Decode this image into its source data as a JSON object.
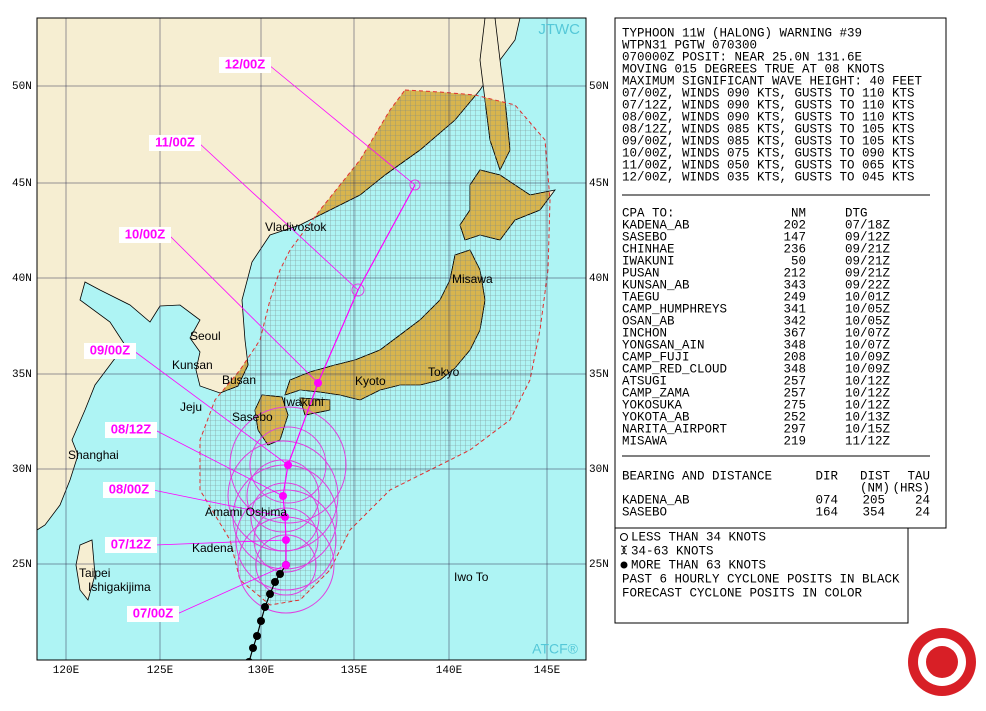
{
  "map": {
    "agency": "JTWC",
    "system": "ATCF®",
    "latitude_labels": [
      "50N",
      "45N",
      "40N",
      "35N",
      "30N",
      "25N"
    ],
    "longitude_labels": [
      "120E",
      "125E",
      "130E",
      "135E",
      "140E",
      "145E"
    ],
    "places": [
      "Vladivostok",
      "Misawa",
      "Seoul",
      "Kunsan",
      "Busan",
      "Jeju",
      "Sasebo",
      "Iwakuni",
      "Kyoto",
      "Tokyo",
      "Shanghai",
      "Amami Oshima",
      "Kadena",
      "Taipei",
      "Ishigakijima",
      "Iwo To"
    ],
    "forecast_times": [
      "12/00Z",
      "11/00Z",
      "10/00Z",
      "09/00Z",
      "08/12Z",
      "08/00Z",
      "07/12Z",
      "07/00Z"
    ]
  },
  "warning": {
    "header": [
      "TYPHOON 11W (HALONG) WARNING #39",
      "WTPN31 PGTW 070300",
      "070000Z POSIT: NEAR 25.0N 131.6E",
      "MOVING 015 DEGREES TRUE AT 08 KNOTS",
      "MAXIMUM SIGNIFICANT WAVE HEIGHT: 40 FEET",
      "07/00Z, WINDS 090 KTS, GUSTS TO 110 KTS",
      "07/12Z, WINDS 090 KTS, GUSTS TO 110 KTS",
      "08/00Z, WINDS 090 KTS, GUSTS TO 110 KTS",
      "08/12Z, WINDS 085 KTS, GUSTS TO 105 KTS",
      "09/00Z, WINDS 085 KTS, GUSTS TO 105 KTS",
      "10/00Z, WINDS 075 KTS, GUSTS TO 090 KTS",
      "11/00Z, WINDS 050 KTS, GUSTS TO 065 KTS",
      "12/00Z, WINDS 035 KTS, GUSTS TO 045 KTS"
    ],
    "cpa": {
      "columns": [
        "CPA TO:",
        "NM",
        "DTG"
      ],
      "rows": [
        [
          "KADENA_AB",
          "202",
          "07/18Z"
        ],
        [
          "SASEBO",
          "147",
          "09/12Z"
        ],
        [
          "CHINHAE",
          "236",
          "09/21Z"
        ],
        [
          "IWAKUNI",
          "50",
          "09/21Z"
        ],
        [
          "PUSAN",
          "212",
          "09/21Z"
        ],
        [
          "KUNSAN_AB",
          "343",
          "09/22Z"
        ],
        [
          "TAEGU",
          "249",
          "10/01Z"
        ],
        [
          "CAMP_HUMPHREYS",
          "341",
          "10/05Z"
        ],
        [
          "OSAN_AB",
          "342",
          "10/05Z"
        ],
        [
          "INCHON",
          "367",
          "10/07Z"
        ],
        [
          "YONGSAN_AIN",
          "348",
          "10/07Z"
        ],
        [
          "CAMP_FUJI",
          "208",
          "10/09Z"
        ],
        [
          "CAMP_RED_CLOUD",
          "348",
          "10/09Z"
        ],
        [
          "ATSUGI",
          "257",
          "10/12Z"
        ],
        [
          "CAMP_ZAMA",
          "257",
          "10/12Z"
        ],
        [
          "YOKOSUKA",
          "275",
          "10/12Z"
        ],
        [
          "YOKOTA_AB",
          "252",
          "10/13Z"
        ],
        [
          "NARITA_AIRPORT",
          "297",
          "10/15Z"
        ],
        [
          "MISAWA",
          "219",
          "11/12Z"
        ]
      ]
    },
    "bearing": {
      "title": "BEARING AND DISTANCE",
      "columns": [
        "DIR",
        "DIST",
        "TAU"
      ],
      "units": [
        "(NM)",
        "(HRS)"
      ],
      "rows": [
        [
          "KADENA_AB",
          "074",
          "205",
          "24"
        ],
        [
          "SASEBO",
          "164",
          "354",
          "24"
        ]
      ]
    }
  },
  "legend": [
    "LESS THAN 34 KNOTS",
    "34-63 KNOTS",
    "MORE THAN 63 KNOTS",
    "PAST 6 HOURLY CYCLONE POSITS IN BLACK",
    "FORECAST CYCLONE POSITS IN COLOR"
  ]
}
